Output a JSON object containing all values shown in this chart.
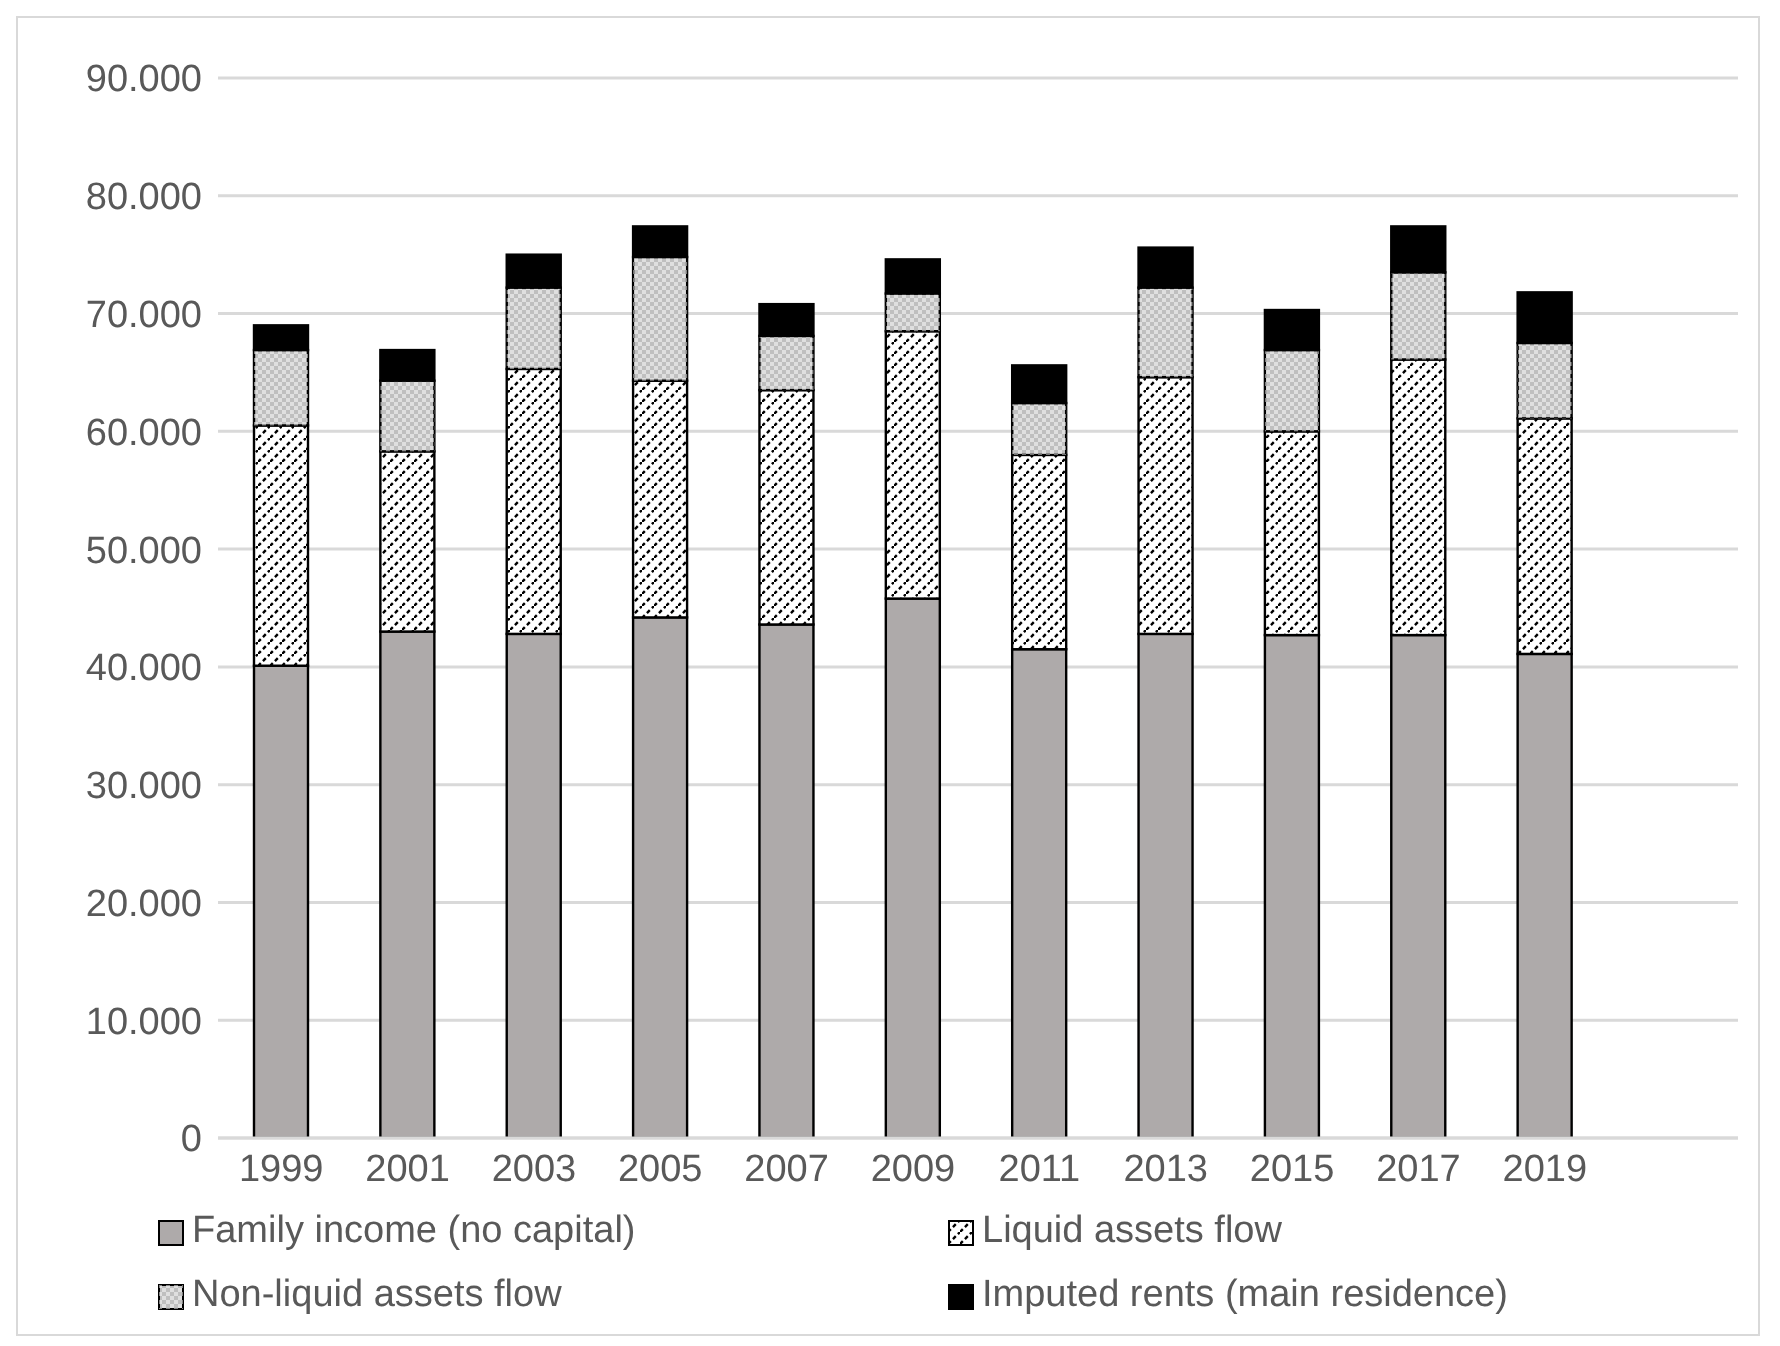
{
  "chart_data": {
    "type": "bar",
    "stacked": true,
    "categories": [
      "1999",
      "2001",
      "2003",
      "2005",
      "2007",
      "2009",
      "2011",
      "2013",
      "2015",
      "2017",
      "2019"
    ],
    "series": [
      {
        "name": "Family income (no capital)",
        "color": "#aeaaaa",
        "values": [
          40100,
          43000,
          42800,
          44200,
          43600,
          45800,
          41500,
          42800,
          42700,
          42700,
          41100
        ]
      },
      {
        "name": "Liquid assets flow",
        "color": "#ffffff",
        "values": [
          20400,
          15300,
          22500,
          20100,
          19900,
          22700,
          16500,
          21800,
          17300,
          23400,
          20000
        ]
      },
      {
        "name": "Non-liquid assets flow",
        "color": "#bfbfbf",
        "values": [
          6400,
          6000,
          6900,
          10500,
          4600,
          3200,
          4400,
          7600,
          6900,
          7400,
          6400
        ]
      },
      {
        "name": "Imputed rents (main residence)",
        "color": "#000000",
        "values": [
          2100,
          2600,
          2800,
          2600,
          2700,
          2900,
          3200,
          3400,
          3400,
          3900,
          4300
        ]
      }
    ],
    "ylim": [
      0,
      90000
    ],
    "yticks": [
      0,
      {
        "value": 10000,
        "label": "10.000"
      },
      {
        "value": 20000,
        "label": "20.000"
      },
      {
        "value": 30000,
        "label": "30.000"
      },
      {
        "value": 40000,
        "label": "40.000"
      },
      {
        "value": 50000,
        "label": "50.000"
      },
      {
        "value": 60000,
        "label": "60.000"
      },
      {
        "value": 70000,
        "label": "70.000"
      },
      {
        "value": 80000,
        "label": "80.000"
      },
      {
        "value": 90000,
        "label": "90.000"
      }
    ],
    "grid": "y",
    "legend": "bottom"
  }
}
